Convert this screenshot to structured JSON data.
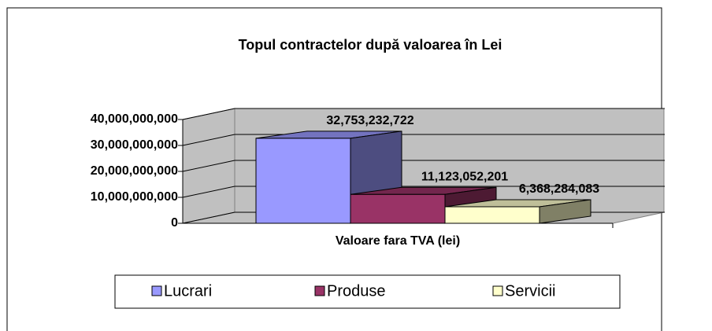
{
  "chart_data": {
    "type": "bar3d",
    "title": "Topul contractelor după valoarea în Lei",
    "categories": [
      "Valoare fara TVA (lei)"
    ],
    "series": [
      {
        "name": "Lucrari",
        "color": "#9999ff",
        "values": [
          32753232722
        ],
        "value_labels": [
          "32,753,232,722"
        ]
      },
      {
        "name": "Produse",
        "color": "#993366",
        "values": [
          11123052201
        ],
        "value_labels": [
          "11,123,052,201"
        ]
      },
      {
        "name": "Servicii",
        "color": "#ffffcc",
        "values": [
          6368284083
        ],
        "value_labels": [
          "6,368,284,083"
        ]
      }
    ],
    "ylim": [
      0,
      40000000000
    ],
    "yticks": [
      {
        "value": 0,
        "label": "0"
      },
      {
        "value": 10000000000,
        "label": "10,000,000,000"
      },
      {
        "value": 20000000000,
        "label": "20,000,000,000"
      },
      {
        "value": 30000000000,
        "label": "30,000,000,000"
      },
      {
        "value": 40000000000,
        "label": "40,000,000,000"
      }
    ],
    "grid": true,
    "legend": "bottom"
  }
}
